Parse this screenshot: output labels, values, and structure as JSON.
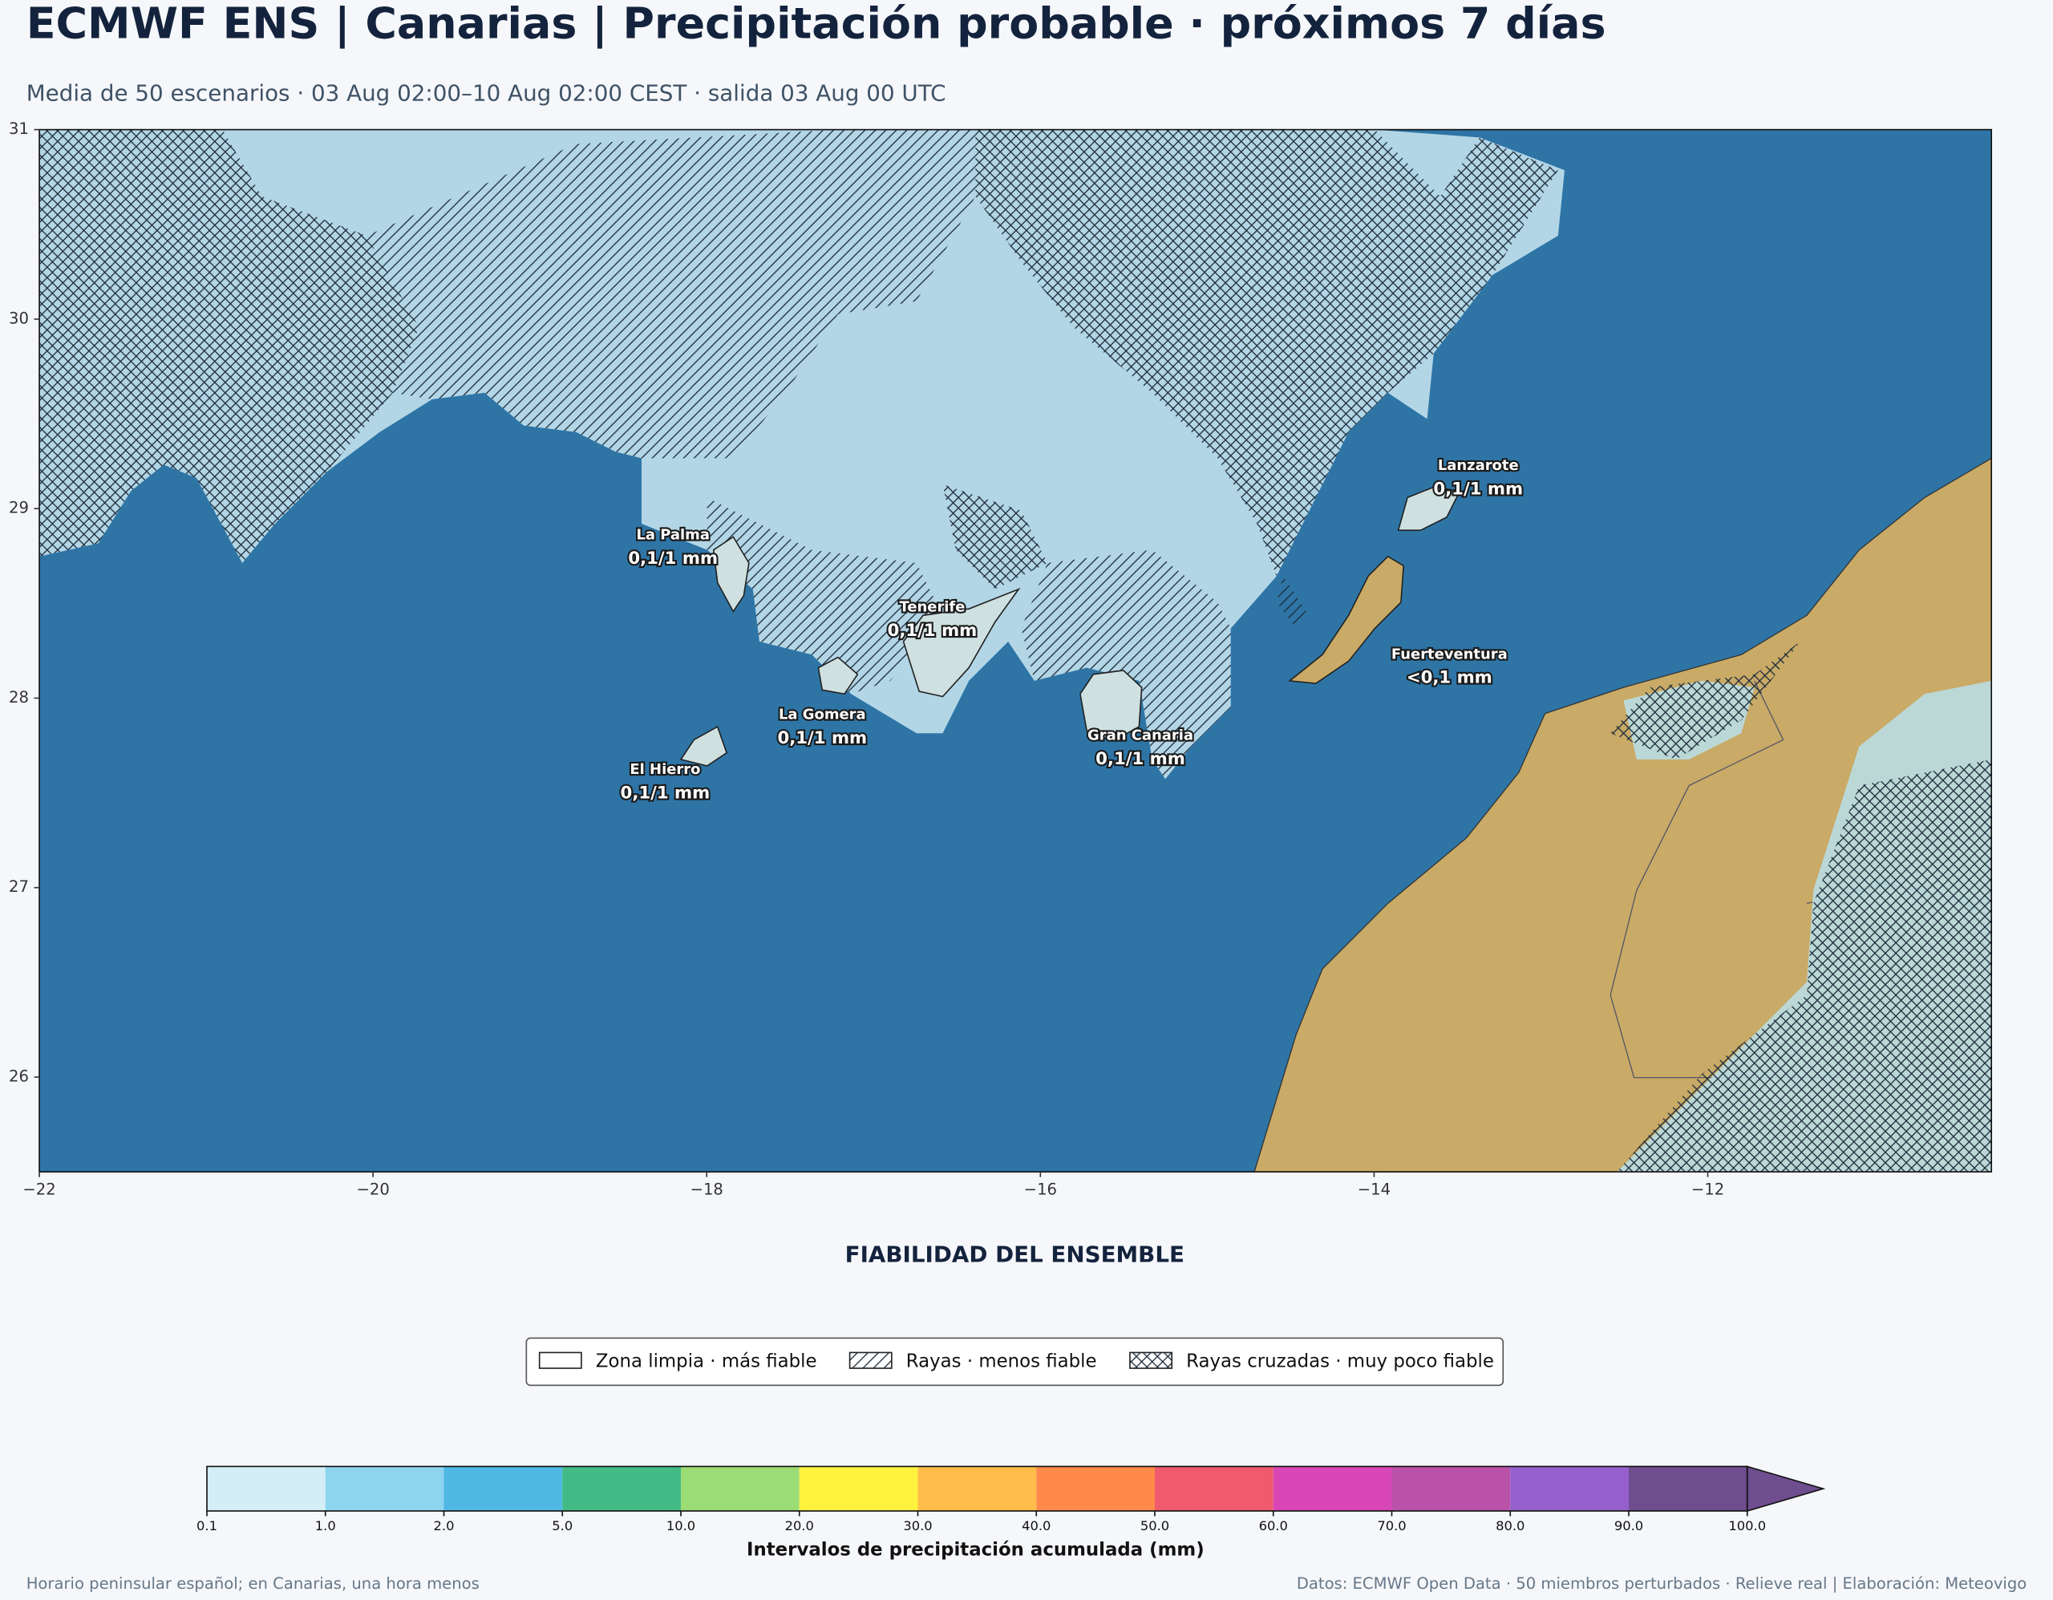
{
  "header": {
    "title": "ECMWF ENS | Canarias | Precipitación probable · próximos 7 días",
    "subtitle": "Media de 50 escenarios · 03 Aug 02:00–10 Aug 02:00 CEST · salida 03 Aug 00 UTC"
  },
  "chart_data": {
    "type": "map",
    "xlim": [
      -22,
      -10.3
    ],
    "ylim": [
      25.5,
      31
    ],
    "xticks": [
      {
        "value": -22,
        "label": "−22"
      },
      {
        "value": -20,
        "label": "−20"
      },
      {
        "value": -18,
        "label": "−18"
      },
      {
        "value": -16,
        "label": "−16"
      },
      {
        "value": -14,
        "label": "−14"
      },
      {
        "value": -12,
        "label": "−12"
      }
    ],
    "yticks": [
      26,
      27,
      28,
      29,
      30,
      31
    ]
  },
  "islands": [
    {
      "name": "La Palma",
      "value": "0,1/1 mm"
    },
    {
      "name": "Tenerife",
      "value": "0,1/1 mm"
    },
    {
      "name": "La Gomera",
      "value": "0,1/1 mm"
    },
    {
      "name": "El Hierro",
      "value": "0,1/1 mm"
    },
    {
      "name": "Gran Canaria",
      "value": "0,1/1 mm"
    },
    {
      "name": "Lanzarote",
      "value": "0,1/1 mm"
    },
    {
      "name": "Fuerteventura",
      "value": "<0,1 mm"
    }
  ],
  "reliability": {
    "title": "FIABILIDAD DEL ENSEMBLE",
    "items": [
      "Zona limpia · más fiable",
      "Rayas · menos fiable",
      "Rayas cruzadas · muy poco fiable"
    ]
  },
  "colorbar": {
    "label": "Intervalos de precipitación acumulada (mm)",
    "ticks": [
      {
        "value": 0.1,
        "label": "0.1"
      },
      {
        "value": 1,
        "label": "1.0"
      },
      {
        "value": 2,
        "label": "2.0"
      },
      {
        "value": 5,
        "label": "5.0"
      },
      {
        "value": 10,
        "label": "10.0"
      },
      {
        "value": 20,
        "label": "20.0"
      },
      {
        "value": 30,
        "label": "30.0"
      },
      {
        "value": 40,
        "label": "40.0"
      },
      {
        "value": 50,
        "label": "50.0"
      },
      {
        "value": 60,
        "label": "60.0"
      },
      {
        "value": 70,
        "label": "70.0"
      },
      {
        "value": 80,
        "label": "80.0"
      },
      {
        "value": 90,
        "label": "90.0"
      },
      {
        "value": 100,
        "label": "100.0"
      }
    ],
    "colors": [
      "#d4eef7",
      "#8dd4ef",
      "#4fb8e3",
      "#43bb87",
      "#9cdc74",
      "#fff23e",
      "#ffbd4a",
      "#ff8a4a",
      "#ef5a6c",
      "#d847b5",
      "#b952a8",
      "#9560cc",
      "#6e4e8e"
    ]
  },
  "footer": {
    "left": "Horario peninsular español; en Canarias, una hora menos",
    "right": "Datos: ECMWF Open Data · 50 miembros perturbados · Relieve real | Elaboración: Meteovigo"
  }
}
